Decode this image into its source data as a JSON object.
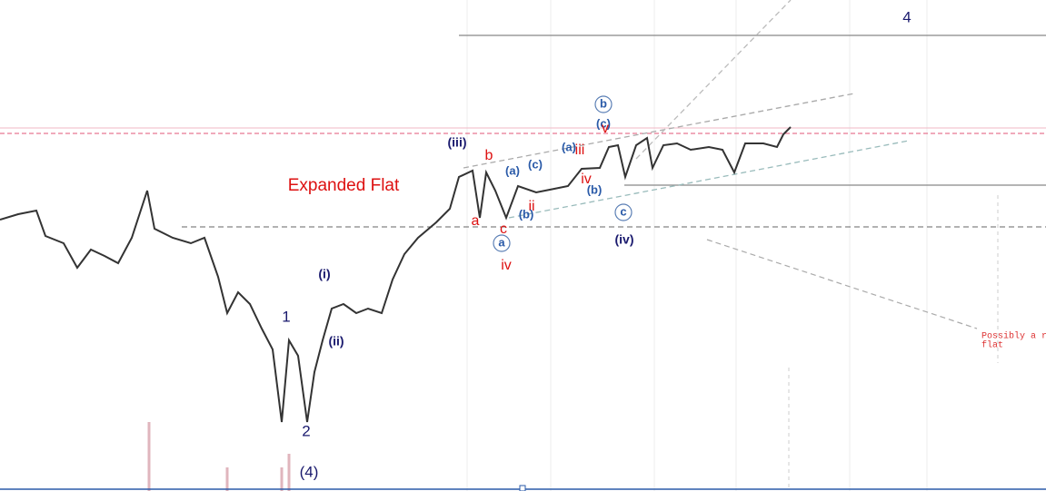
{
  "labels": [
    "4",
    "b",
    "(c)",
    "v",
    "(iii)",
    "(a)",
    "iii",
    "b",
    "(a)",
    "(c)",
    "iv",
    "(b)",
    "Expanded Flat",
    "ii",
    "(b)",
    "c",
    "a",
    "c",
    "a",
    "(iv)",
    "iv",
    "(i)",
    "1",
    "(ii)",
    "Possibly a r",
    "flat",
    "2",
    "(4)"
  ]
}
